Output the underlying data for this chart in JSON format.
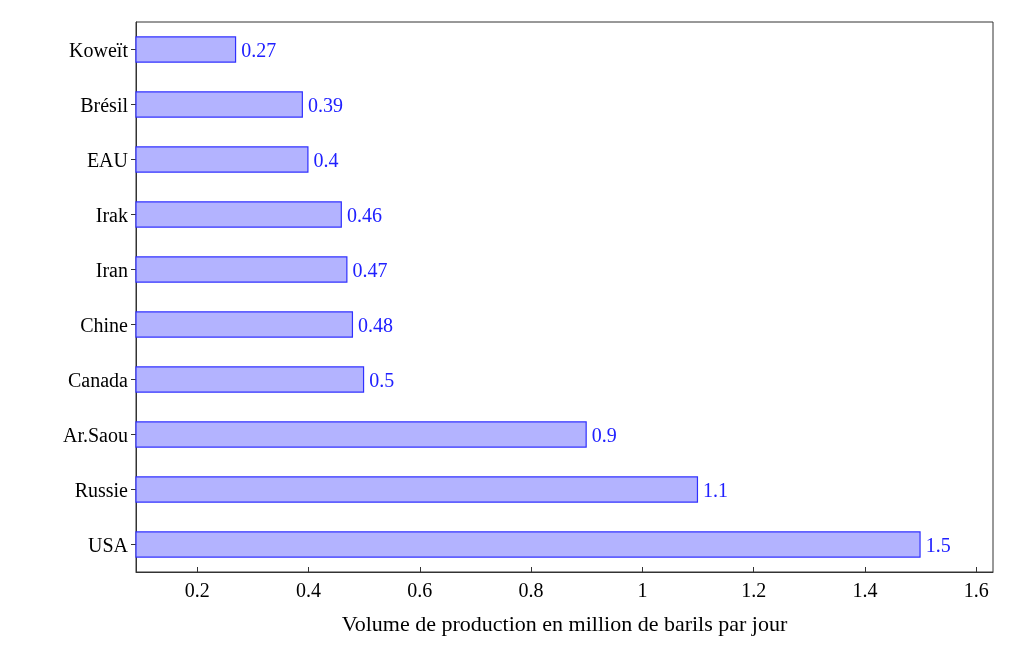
{
  "chart_data": {
    "type": "bar",
    "orientation": "horizontal",
    "xlabel": "Volume de production en million de barils par jour",
    "categories": [
      "Koweït",
      "Brésil",
      "EAU",
      "Irak",
      "Iran",
      "Chine",
      "Canada",
      "Ar.Saou",
      "Russie",
      "USA"
    ],
    "values": [
      0.27,
      0.39,
      0.4,
      0.46,
      0.47,
      0.48,
      0.5,
      0.9,
      1.1,
      1.5
    ],
    "color": "#b3b3ff",
    "data_labels": true,
    "xlim": [
      0.09,
      1.63
    ],
    "xticks": [
      0.2,
      0.4,
      0.6,
      0.8,
      1,
      1.2,
      1.4,
      1.6
    ],
    "grid": false
  }
}
